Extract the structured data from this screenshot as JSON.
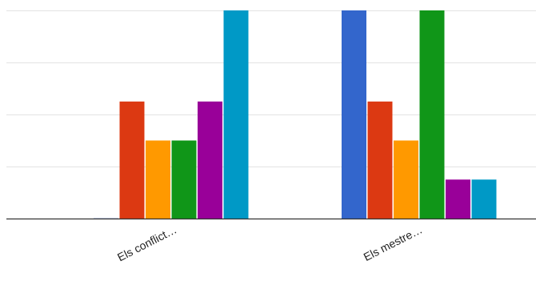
{
  "chart_data": {
    "type": "bar",
    "categories": [
      "Els conflict…",
      "Els mestre…"
    ],
    "ylim": [
      0,
      4
    ],
    "grid": true,
    "legend": "none",
    "series": [
      {
        "color": "#3366cc",
        "values": [
          0,
          4
        ]
      },
      {
        "color": "#dc3912",
        "values": [
          2.25,
          2.25
        ]
      },
      {
        "color": "#ff9900",
        "values": [
          1.5,
          1.5
        ]
      },
      {
        "color": "#109618",
        "values": [
          1.5,
          4
        ]
      },
      {
        "color": "#990099",
        "values": [
          2.25,
          0.75
        ]
      },
      {
        "color": "#0099c6",
        "values": [
          4,
          0.75
        ]
      }
    ]
  }
}
